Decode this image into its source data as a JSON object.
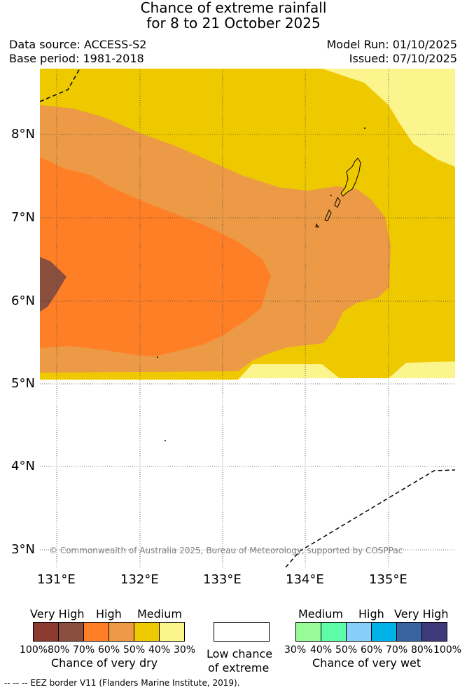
{
  "header": {
    "title_line1": "Chance of extreme rainfall",
    "title_line2": "for 8 to 21 October 2025",
    "data_source": "Data source: ACCESS-S2",
    "base_period": "Base period: 1981-2018",
    "model_run": "Model Run: 01/10/2025",
    "issued": "Issued: 07/10/2025"
  },
  "map": {
    "lat_labels": [
      "8°N",
      "7°N",
      "6°N",
      "5°N",
      "4°N",
      "3°N"
    ],
    "lon_labels": [
      "131°E",
      "132°E",
      "133°E",
      "134°E",
      "135°E"
    ],
    "copyright": "© Commonwealth of Australia 2025, Bureau of Meteorology, supported by COSPPac"
  },
  "legend_dry": {
    "categories": [
      "Very High",
      "High",
      "Medium"
    ],
    "colors": [
      "#8b3a30",
      "#8a4f3e",
      "#ff7f27",
      "#ec9a45",
      "#eec900",
      "#fcf48c"
    ],
    "ticks": [
      "100%",
      "80%",
      "70%",
      "60%",
      "50%",
      "40%",
      "30%"
    ],
    "label": "Chance of very dry"
  },
  "legend_low": {
    "label_line1": "Low chance",
    "label_line2": "of extreme",
    "color": "#ffffff"
  },
  "legend_wet": {
    "categories": [
      "Medium",
      "High",
      "Very High"
    ],
    "colors": [
      "#98fb98",
      "#5dfca7",
      "#87cefa",
      "#00b2e8",
      "#3a64a0",
      "#3c3a78"
    ],
    "ticks": [
      "30%",
      "40%",
      "50%",
      "60%",
      "70%",
      "80%",
      "100%"
    ],
    "label": "Chance of very wet"
  },
  "footnote": "--  --  -- EEZ border V11 (Flanders Marine Institute, 2019)."
}
